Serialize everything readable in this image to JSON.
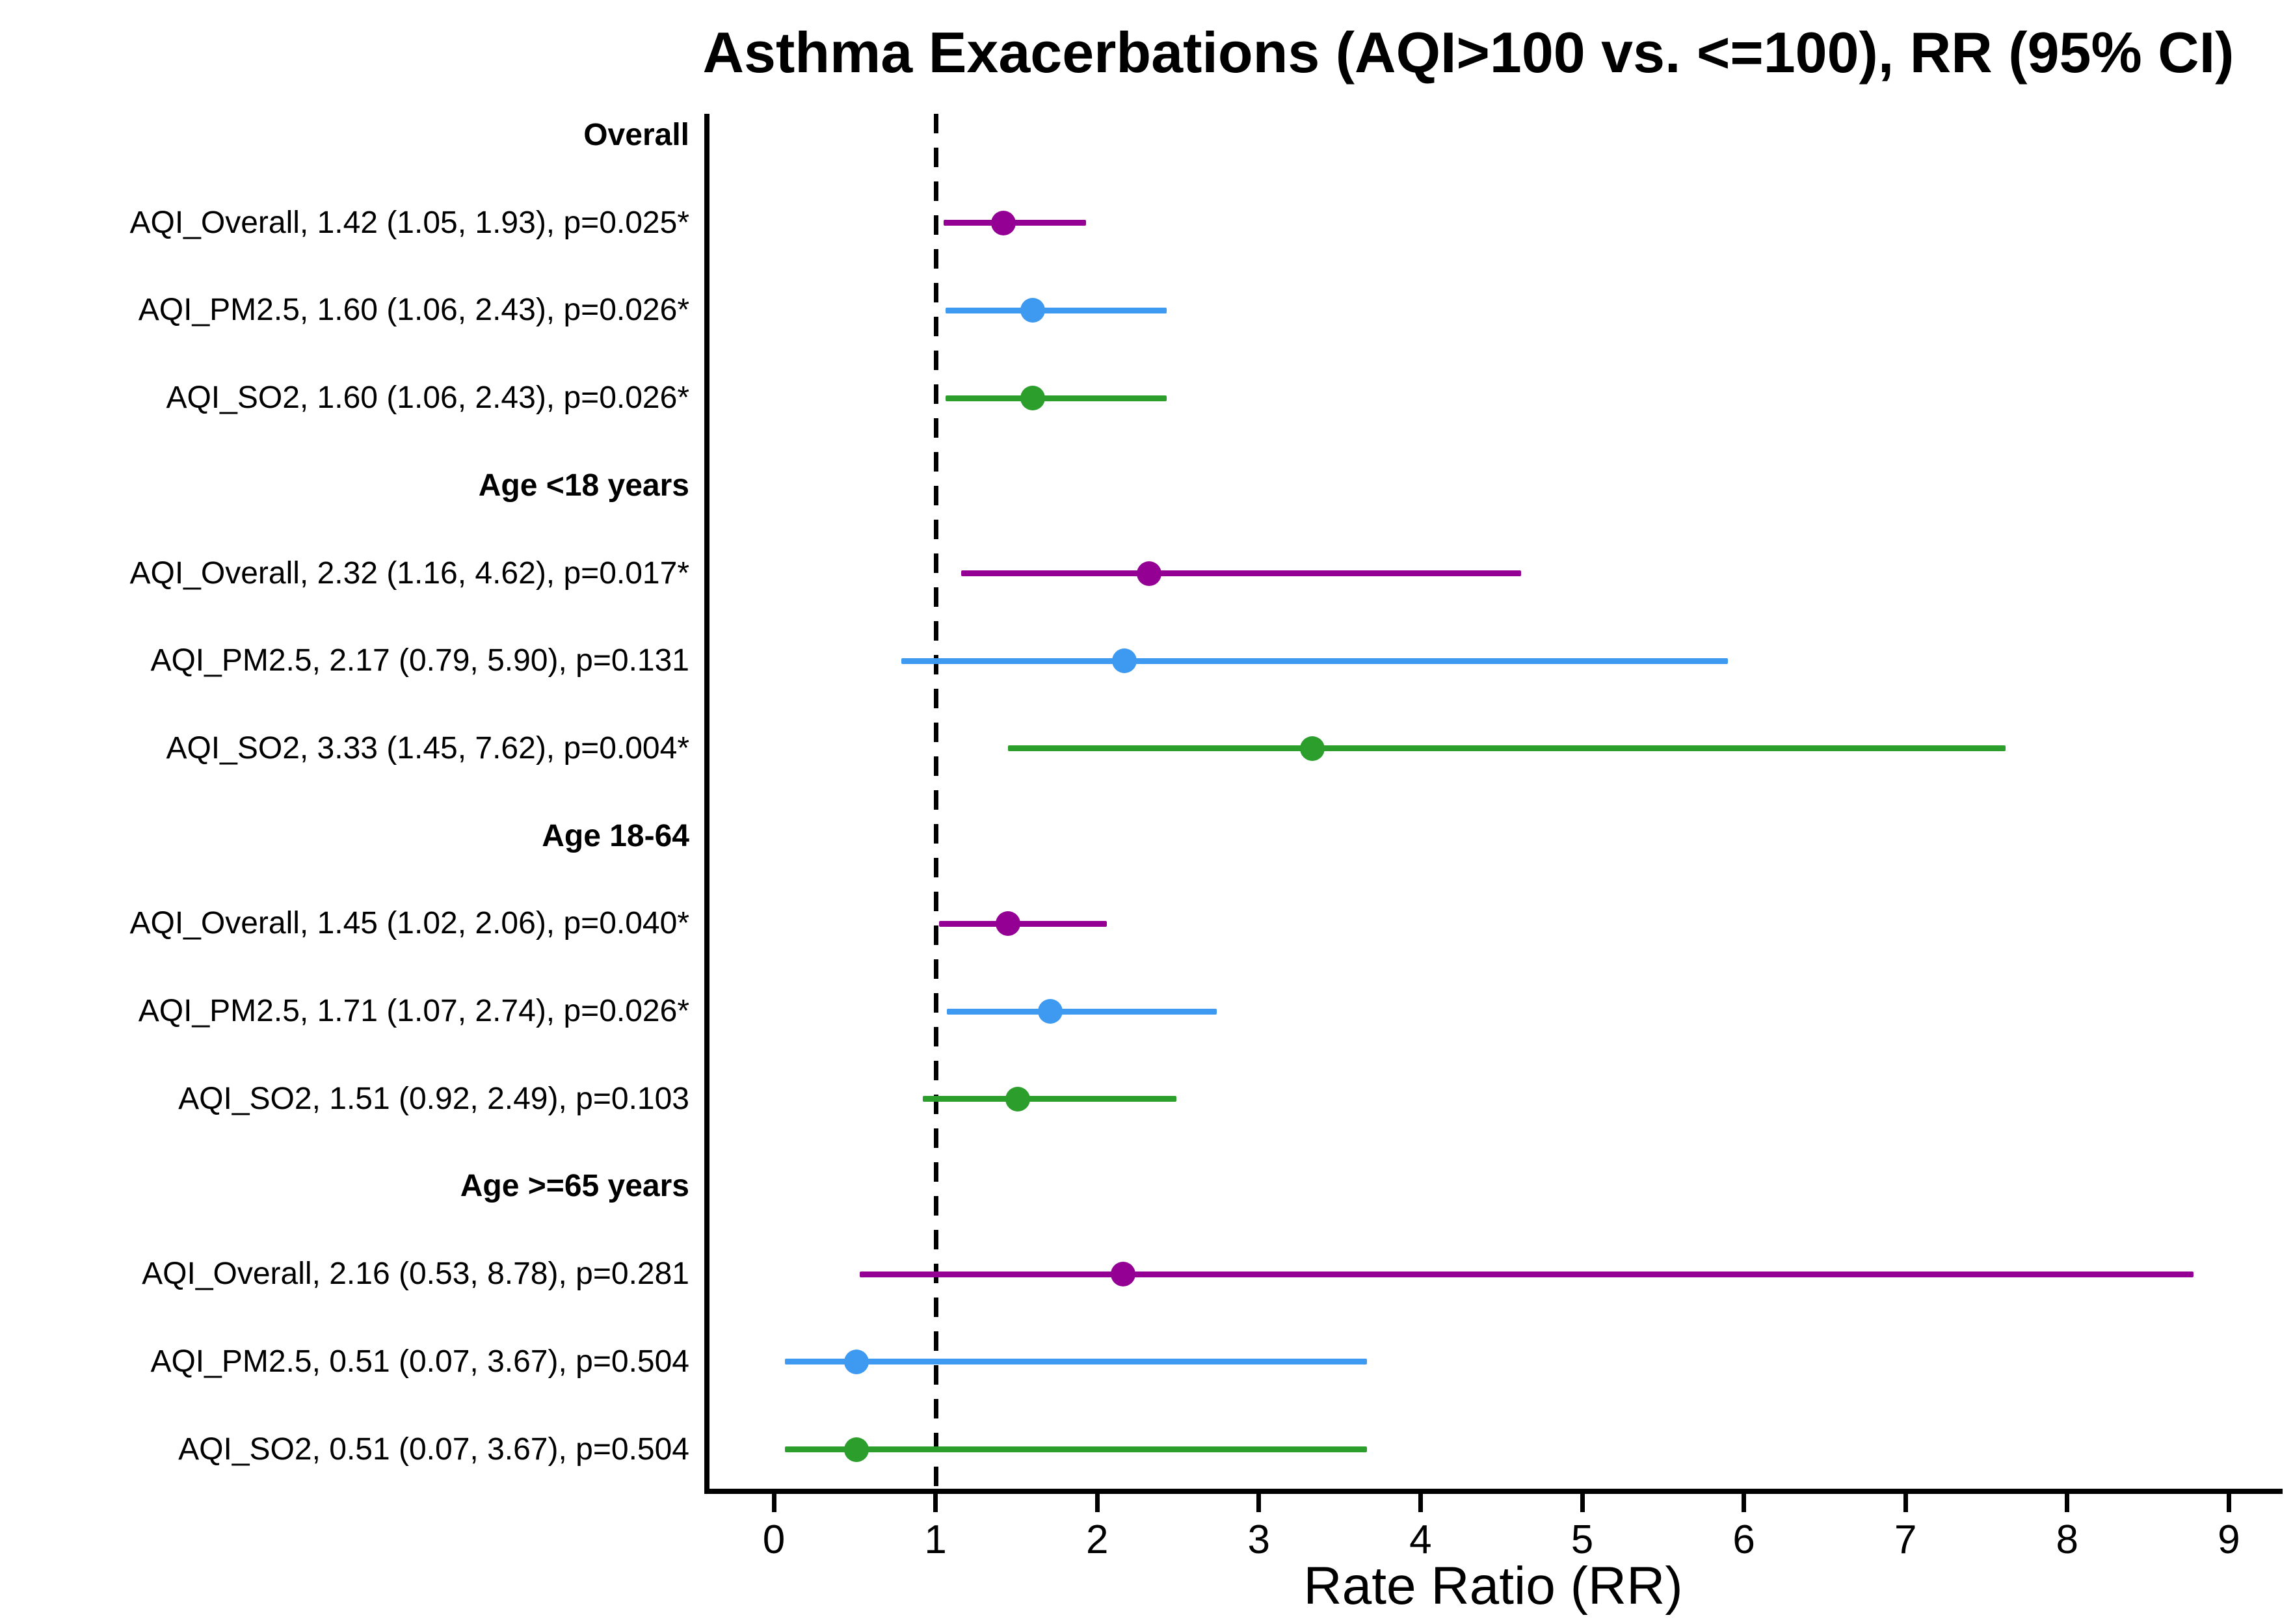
{
  "chart_data": {
    "type": "forest",
    "title": "Asthma Exacerbations (AQI>100 vs. <=100), RR (95% CI)",
    "xlabel": "Rate Ratio (RR)",
    "xlim": [
      0,
      9
    ],
    "xticks": [
      0,
      1,
      2,
      3,
      4,
      5,
      6,
      7,
      8,
      9
    ],
    "reference_line": 1,
    "grid": "off",
    "legend": "none",
    "colors": {
      "AQI_Overall": "#940094",
      "AQI_PM2.5": "#3d9af0",
      "AQI_SO2": "#2b9e2b"
    },
    "groups": [
      {
        "header": "Overall",
        "rows": [
          {
            "label": "AQI_Overall, 1.42 (1.05, 1.93), p=0.025*",
            "series": "AQI_Overall",
            "rr": 1.42,
            "ci_low": 1.05,
            "ci_high": 1.93,
            "p": "0.025",
            "significant": true
          },
          {
            "label": "AQI_PM2.5, 1.60 (1.06, 2.43), p=0.026*",
            "series": "AQI_PM2.5",
            "rr": 1.6,
            "ci_low": 1.06,
            "ci_high": 2.43,
            "p": "0.026",
            "significant": true
          },
          {
            "label": "AQI_SO2, 1.60 (1.06, 2.43), p=0.026*",
            "series": "AQI_SO2",
            "rr": 1.6,
            "ci_low": 1.06,
            "ci_high": 2.43,
            "p": "0.026",
            "significant": true
          }
        ]
      },
      {
        "header": "Age <18 years",
        "rows": [
          {
            "label": "AQI_Overall, 2.32 (1.16, 4.62), p=0.017*",
            "series": "AQI_Overall",
            "rr": 2.32,
            "ci_low": 1.16,
            "ci_high": 4.62,
            "p": "0.017",
            "significant": true
          },
          {
            "label": "AQI_PM2.5, 2.17 (0.79, 5.90), p=0.131",
            "series": "AQI_PM2.5",
            "rr": 2.17,
            "ci_low": 0.79,
            "ci_high": 5.9,
            "p": "0.131",
            "significant": false
          },
          {
            "label": "AQI_SO2, 3.33 (1.45, 7.62), p=0.004*",
            "series": "AQI_SO2",
            "rr": 3.33,
            "ci_low": 1.45,
            "ci_high": 7.62,
            "p": "0.004",
            "significant": true
          }
        ]
      },
      {
        "header": "Age 18-64",
        "rows": [
          {
            "label": "AQI_Overall, 1.45 (1.02, 2.06), p=0.040*",
            "series": "AQI_Overall",
            "rr": 1.45,
            "ci_low": 1.02,
            "ci_high": 2.06,
            "p": "0.040",
            "significant": true
          },
          {
            "label": "AQI_PM2.5, 1.71 (1.07, 2.74), p=0.026*",
            "series": "AQI_PM2.5",
            "rr": 1.71,
            "ci_low": 1.07,
            "ci_high": 2.74,
            "p": "0.026",
            "significant": true
          },
          {
            "label": "AQI_SO2, 1.51 (0.92, 2.49), p=0.103",
            "series": "AQI_SO2",
            "rr": 1.51,
            "ci_low": 0.92,
            "ci_high": 2.49,
            "p": "0.103",
            "significant": false
          }
        ]
      },
      {
        "header": "Age >=65 years",
        "rows": [
          {
            "label": "AQI_Overall, 2.16 (0.53, 8.78), p=0.281",
            "series": "AQI_Overall",
            "rr": 2.16,
            "ci_low": 0.53,
            "ci_high": 8.78,
            "p": "0.281",
            "significant": false
          },
          {
            "label": "AQI_PM2.5, 0.51 (0.07, 3.67), p=0.504",
            "series": "AQI_PM2.5",
            "rr": 0.51,
            "ci_low": 0.07,
            "ci_high": 3.67,
            "p": "0.504",
            "significant": false
          },
          {
            "label": "AQI_SO2, 0.51 (0.07, 3.67), p=0.504",
            "series": "AQI_SO2",
            "rr": 0.51,
            "ci_low": 0.07,
            "ci_high": 3.67,
            "p": "0.504",
            "significant": false
          }
        ]
      }
    ]
  }
}
